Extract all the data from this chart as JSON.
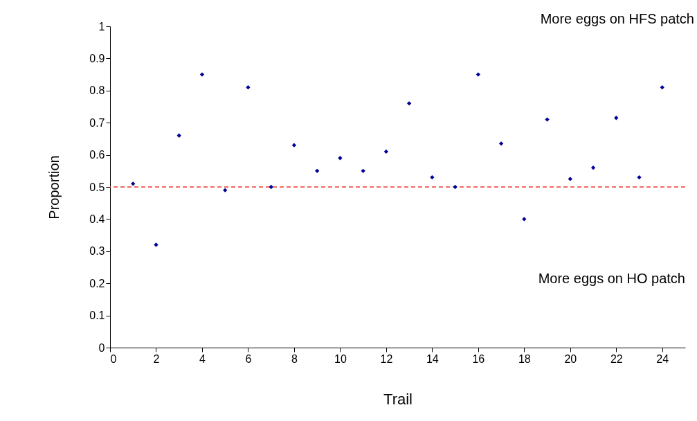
{
  "chart_data": {
    "type": "scatter",
    "xlabel": "Trail",
    "ylabel": "Proportion",
    "x": [
      1,
      2,
      3,
      4,
      5,
      6,
      7,
      8,
      9,
      10,
      11,
      12,
      13,
      14,
      15,
      16,
      17,
      18,
      19,
      20,
      21,
      22,
      23,
      24
    ],
    "series": [
      {
        "color": "#000099",
        "values": [
          0.51,
          0.32,
          0.66,
          0.85,
          0.49,
          0.81,
          0.5,
          0.63,
          0.55,
          0.59,
          0.55,
          0.61,
          0.76,
          0.53,
          0.5,
          0.85,
          0.635,
          0.4,
          0.71,
          0.525,
          0.56,
          0.715,
          0.53,
          0.81
        ]
      }
    ],
    "marker": "diamond",
    "xlim": [
      0,
      25
    ],
    "xticks": [
      0,
      2,
      4,
      6,
      8,
      10,
      12,
      14,
      16,
      18,
      20,
      22,
      24
    ],
    "ylim": [
      0,
      1
    ],
    "yticks": [
      0,
      0.1,
      0.2,
      0.3,
      0.4,
      0.5,
      0.6,
      0.7,
      0.8,
      0.9,
      1
    ],
    "ref_lines": [
      {
        "axis": "y",
        "value": 0.5,
        "color": "#ee3b2f",
        "line_style": "dashed"
      }
    ],
    "annotations": [
      "More eggs on HFS patch",
      "More eggs on HO patch"
    ],
    "grid": false
  }
}
